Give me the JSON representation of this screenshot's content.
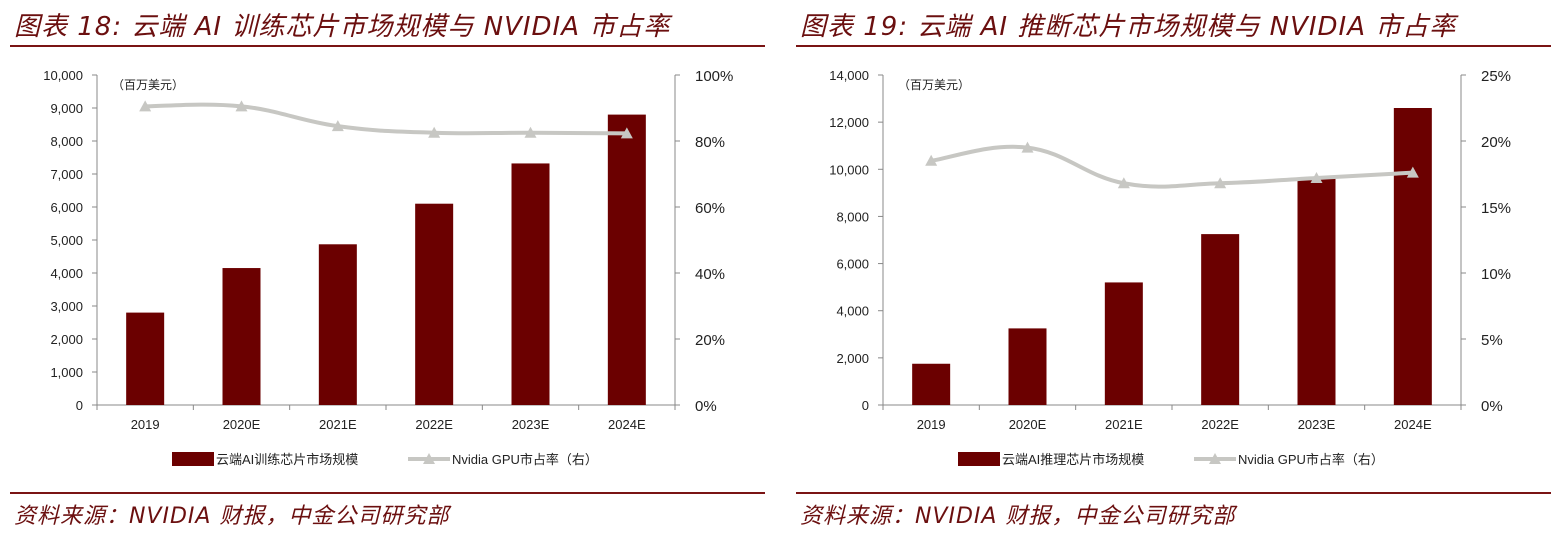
{
  "colors": {
    "bar": "#6b0000",
    "line": "#c7c7c3",
    "title": "#6b0f0f",
    "axis": "#888888"
  },
  "panels": [
    {
      "title": "图表 18:  云端 AI 训练芯片市场规模与 NVIDIA 市占率",
      "source": "资料来源：NVIDIA 财报，中金公司研究部",
      "chart_data": {
        "type": "bar",
        "unit_label": "（百万美元）",
        "categories": [
          "2019",
          "2020E",
          "2021E",
          "2022E",
          "2023E",
          "2024E"
        ],
        "y_ticks": [
          "0",
          "1,000",
          "2,000",
          "3,000",
          "4,000",
          "5,000",
          "6,000",
          "7,000",
          "8,000",
          "9,000",
          "10,000"
        ],
        "ylim": [
          0,
          10000
        ],
        "y2_ticks": [
          "0%",
          "20%",
          "40%",
          "60%",
          "80%",
          "100%"
        ],
        "y2lim": [
          0,
          100
        ],
        "series": [
          {
            "name": "云端AI训练芯片市场规模",
            "type": "bar",
            "axis": "left",
            "values": [
              2800,
              4150,
              4870,
              6100,
              7320,
              8800
            ]
          },
          {
            "name": "Nvidia GPU市占率（右）",
            "type": "line",
            "axis": "right",
            "values": [
              90.5,
              90.5,
              84.5,
              82.5,
              82.5,
              82.3
            ]
          }
        ]
      }
    },
    {
      "title": "图表 19:  云端 AI 推断芯片市场规模与 NVIDIA 市占率",
      "source": "资料来源：NVIDIA 财报，中金公司研究部",
      "chart_data": {
        "type": "bar",
        "unit_label": "（百万美元）",
        "categories": [
          "2019",
          "2020E",
          "2021E",
          "2022E",
          "2023E",
          "2024E"
        ],
        "y_ticks": [
          "0",
          "2,000",
          "4,000",
          "6,000",
          "8,000",
          "10,000",
          "12,000",
          "14,000"
        ],
        "ylim": [
          0,
          14000
        ],
        "y2_ticks": [
          "0%",
          "5%",
          "10%",
          "15%",
          "20%",
          "25%"
        ],
        "y2lim": [
          0,
          25
        ],
        "series": [
          {
            "name": "云端AI推理芯片市场规模",
            "type": "bar",
            "axis": "left",
            "values": [
              1750,
              3250,
              5200,
              7250,
              9650,
              12600
            ]
          },
          {
            "name": "Nvidia GPU市占率（右）",
            "type": "line",
            "axis": "right",
            "values": [
              18.5,
              19.5,
              16.8,
              16.8,
              17.2,
              17.6
            ]
          }
        ]
      }
    }
  ]
}
